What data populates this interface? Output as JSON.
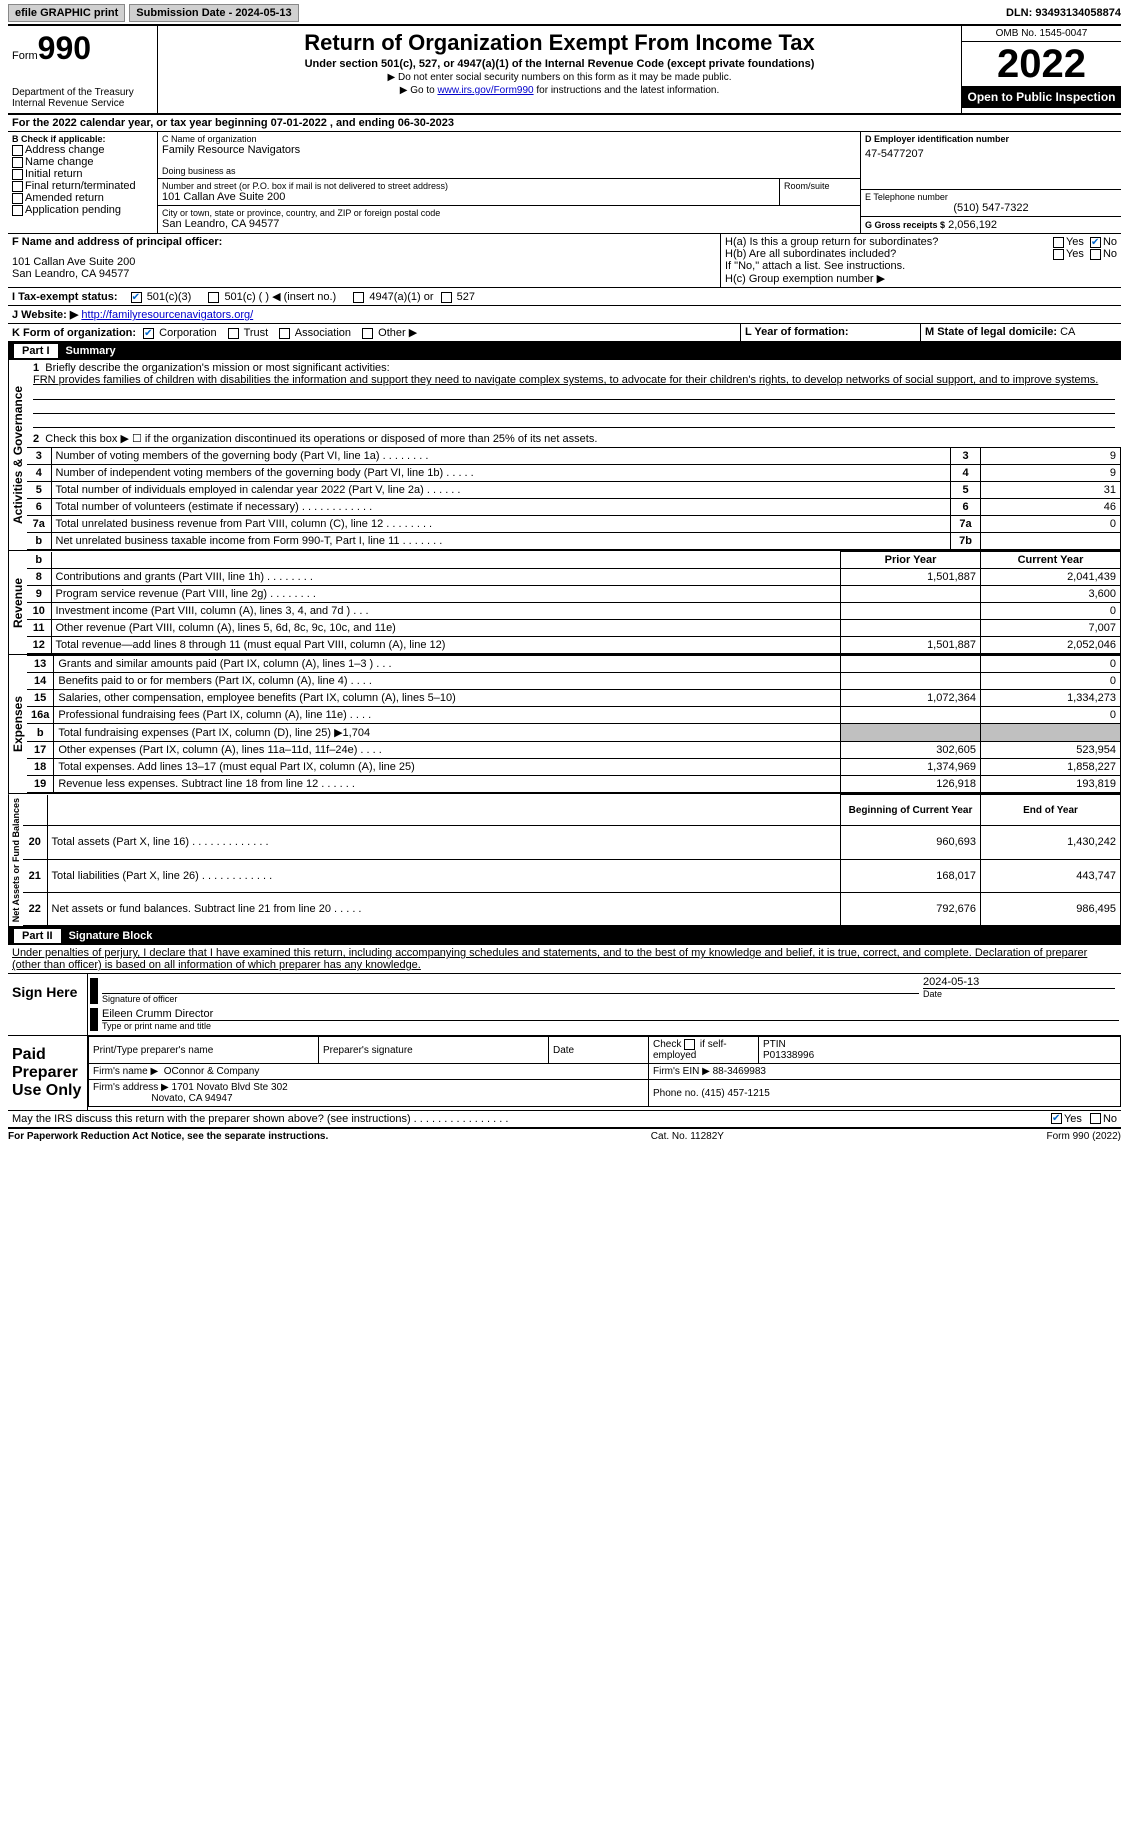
{
  "topbar": {
    "efile": "efile GRAPHIC print",
    "submission": "Submission Date - 2024-05-13",
    "dln": "DLN: 93493134058874"
  },
  "header": {
    "form_label": "Form",
    "form_num": "990",
    "dept": "Department of the Treasury",
    "irs": "Internal Revenue Service",
    "title": "Return of Organization Exempt From Income Tax",
    "subtitle": "Under section 501(c), 527, or 4947(a)(1) of the Internal Revenue Code (except private foundations)",
    "note1": "▶ Do not enter social security numbers on this form as it may be made public.",
    "note2_pre": "▶ Go to ",
    "note2_link": "www.irs.gov/Form990",
    "note2_post": " for instructions and the latest information.",
    "omb": "OMB No. 1545-0047",
    "year": "2022",
    "inspect": "Open to Public Inspection"
  },
  "period": "For the 2022 calendar year, or tax year beginning 07-01-2022    , and ending 06-30-2023",
  "boxB": {
    "label": "B Check if applicable:",
    "opts": [
      "Address change",
      "Name change",
      "Initial return",
      "Final return/terminated",
      "Amended return",
      "Application pending"
    ]
  },
  "boxC": {
    "label": "C Name of organization",
    "name": "Family Resource Navigators",
    "dba_label": "Doing business as",
    "addr_label": "Number and street (or P.O. box if mail is not delivered to street address)",
    "room_label": "Room/suite",
    "addr": "101 Callan Ave Suite 200",
    "city_label": "City or town, state or province, country, and ZIP or foreign postal code",
    "city": "San Leandro, CA  94577"
  },
  "boxD": {
    "label": "D Employer identification number",
    "val": "47-5477207"
  },
  "boxE": {
    "label": "E Telephone number",
    "val": "(510) 547-7322"
  },
  "boxG": {
    "label": "G Gross receipts $",
    "val": "2,056,192"
  },
  "boxF": {
    "label": "F  Name and address of principal officer:",
    "addr1": "101 Callan Ave Suite 200",
    "addr2": "San Leandro, CA  94577"
  },
  "boxH": {
    "a": "H(a)  Is this a group return for subordinates?",
    "b": "H(b)  Are all subordinates included?",
    "note": "If \"No,\" attach a list. See instructions.",
    "c": "H(c)  Group exemption number ▶",
    "yes": "Yes",
    "no": "No"
  },
  "boxI": {
    "label": "I  Tax-exempt status:",
    "opts": [
      "501(c)(3)",
      "501(c) (  ) ◀ (insert no.)",
      "4947(a)(1) or",
      "527"
    ]
  },
  "boxJ": {
    "label": "J  Website: ▶",
    "val": "http://familyresourcenavigators.org/"
  },
  "boxK": {
    "label": "K Form of organization:",
    "opts": [
      "Corporation",
      "Trust",
      "Association",
      "Other ▶"
    ]
  },
  "boxL": {
    "label": "L Year of formation:"
  },
  "boxM": {
    "label": "M State of legal domicile:",
    "val": "CA"
  },
  "part1": {
    "title": "Part I",
    "name": "Summary",
    "vert_label": "Activities & Governance",
    "line1": "Briefly describe the organization's mission or most significant activities:",
    "mission": "FRN provides families of children with disabilities the information and support they need to navigate complex systems, to advocate for their children's rights, to develop networks of social support, and to improve systems.",
    "line2": "Check this box ▶ ☐  if the organization discontinued its operations or disposed of more than 25% of its net assets.",
    "rows_gov": [
      {
        "n": "3",
        "d": "Number of voting members of the governing body (Part VI, line 1a)   .    .    .    .    .    .    .    .",
        "r": "3",
        "v": "9"
      },
      {
        "n": "4",
        "d": "Number of independent voting members of the governing body (Part VI, line 1b)   .    .    .    .    .",
        "r": "4",
        "v": "9"
      },
      {
        "n": "5",
        "d": "Total number of individuals employed in calendar year 2022 (Part V, line 2a)   .    .    .    .    .    .",
        "r": "5",
        "v": "31"
      },
      {
        "n": "6",
        "d": "Total number of volunteers (estimate if necessary)    .    .    .    .    .    .    .    .    .    .    .    .",
        "r": "6",
        "v": "46"
      },
      {
        "n": "7a",
        "d": "Total unrelated business revenue from Part VIII, column (C), line 12    .    .    .    .    .    .    .    .",
        "r": "7a",
        "v": "0"
      },
      {
        "n": "b",
        "d": "Net unrelated business taxable income from Form 990-T, Part I, line 11    .    .    .    .    .    .    .",
        "r": "7b",
        "v": ""
      }
    ],
    "prior": "Prior Year",
    "current": "Current Year",
    "vert_rev": "Revenue",
    "rows_rev": [
      {
        "n": "8",
        "d": "Contributions and grants (Part VIII, line 1h)    .    .    .    .    .    .    .    .",
        "p": "1,501,887",
        "c": "2,041,439"
      },
      {
        "n": "9",
        "d": "Program service revenue (Part VIII, line 2g)   .    .    .    .    .    .    .    .",
        "p": "",
        "c": "3,600"
      },
      {
        "n": "10",
        "d": "Investment income (Part VIII, column (A), lines 3, 4, and 7d )    .    .    .",
        "p": "",
        "c": "0"
      },
      {
        "n": "11",
        "d": "Other revenue (Part VIII, column (A), lines 5, 6d, 8c, 9c, 10c, and 11e)",
        "p": "",
        "c": "7,007"
      },
      {
        "n": "12",
        "d": "Total revenue—add lines 8 through 11 (must equal Part VIII, column (A), line 12)",
        "p": "1,501,887",
        "c": "2,052,046"
      }
    ],
    "vert_exp": "Expenses",
    "rows_exp": [
      {
        "n": "13",
        "d": "Grants and similar amounts paid (Part IX, column (A), lines 1–3 )   .    .    .",
        "p": "",
        "c": "0"
      },
      {
        "n": "14",
        "d": "Benefits paid to or for members (Part IX, column (A), line 4)    .    .    .    .",
        "p": "",
        "c": "0"
      },
      {
        "n": "15",
        "d": "Salaries, other compensation, employee benefits (Part IX, column (A), lines 5–10)",
        "p": "1,072,364",
        "c": "1,334,273"
      },
      {
        "n": "16a",
        "d": "Professional fundraising fees (Part IX, column (A), line 11e)   .    .    .    .",
        "p": "",
        "c": "0"
      },
      {
        "n": "b",
        "d": "Total fundraising expenses (Part IX, column (D), line 25) ▶1,704",
        "p": "shaded",
        "c": "shaded"
      },
      {
        "n": "17",
        "d": "Other expenses (Part IX, column (A), lines 11a–11d, 11f–24e)   .    .    .    .",
        "p": "302,605",
        "c": "523,954"
      },
      {
        "n": "18",
        "d": "Total expenses. Add lines 13–17 (must equal Part IX, column (A), line 25)",
        "p": "1,374,969",
        "c": "1,858,227"
      },
      {
        "n": "19",
        "d": "Revenue less expenses. Subtract line 18 from line 12   .    .    .    .    .    .",
        "p": "126,918",
        "c": "193,819"
      }
    ],
    "vert_net": "Net Assets or Fund Balances",
    "begin": "Beginning of Current Year",
    "end": "End of Year",
    "rows_net": [
      {
        "n": "20",
        "d": "Total assets (Part X, line 16)   .    .    .    .    .    .    .    .    .    .    .    .    .",
        "p": "960,693",
        "c": "1,430,242"
      },
      {
        "n": "21",
        "d": "Total liabilities (Part X, line 26)   .    .    .    .    .    .    .    .    .    .    .    .",
        "p": "168,017",
        "c": "443,747"
      },
      {
        "n": "22",
        "d": "Net assets or fund balances. Subtract line 21 from line 20    .    .    .    .    .",
        "p": "792,676",
        "c": "986,495"
      }
    ]
  },
  "part2": {
    "title": "Part II",
    "name": "Signature Block",
    "decl": "Under penalties of perjury, I declare that I have examined this return, including accompanying schedules and statements, and to the best of my knowledge and belief, it is true, correct, and complete. Declaration of preparer (other than officer) is based on all information of which preparer has any knowledge."
  },
  "sign": {
    "here": "Sign Here",
    "sig_label": "Signature of officer",
    "date_label": "Date",
    "date": "2024-05-13",
    "name": "Eileen Crumm  Director",
    "name_label": "Type or print name and title"
  },
  "prep": {
    "label": "Paid Preparer Use Only",
    "h1": "Print/Type preparer's name",
    "h2": "Preparer's signature",
    "h3": "Date",
    "h4_pre": "Check",
    "h4_post": "if self-employed",
    "ptin_label": "PTIN",
    "ptin": "P01338996",
    "firm_label": "Firm's name    ▶",
    "firm": "OConnor & Company",
    "ein_label": "Firm's EIN ▶",
    "ein": "88-3469983",
    "addr_label": "Firm's address ▶",
    "addr1": "1701 Novato Blvd Ste 302",
    "addr2": "Novato, CA  94947",
    "phone_label": "Phone no.",
    "phone": "(415) 457-1215"
  },
  "discuss": {
    "q": "May the IRS discuss this return with the preparer shown above? (see instructions)    .    .    .    .    .    .    .    .    .    .    .    .    .    .    .    .",
    "yes": "Yes",
    "no": "No"
  },
  "footer": {
    "left": "For Paperwork Reduction Act Notice, see the separate instructions.",
    "mid": "Cat. No. 11282Y",
    "right": "Form 990 (2022)"
  }
}
